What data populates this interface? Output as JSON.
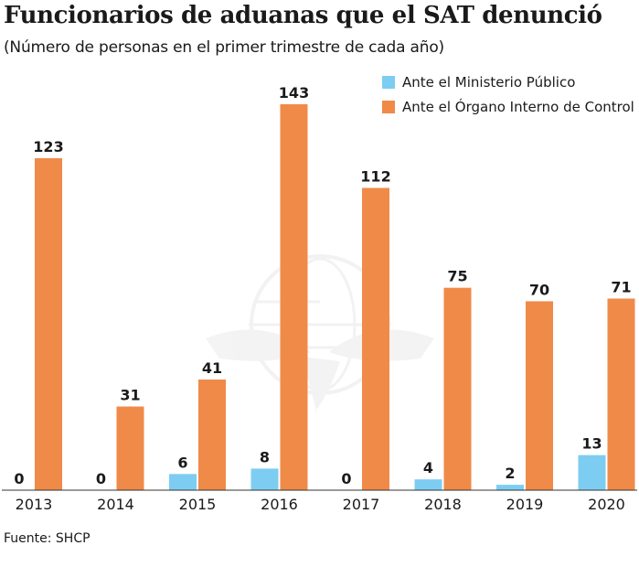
{
  "title": "Funcionarios de aduanas que el SAT denunció",
  "subtitle": "(Número de personas en el primer trimestre de cada año)",
  "source": "Fuente: SHCP",
  "colors": {
    "ministerio": "#7dcdf2",
    "organo": "#f08a48",
    "axis": "#333333",
    "watermark": "#e6e6e6"
  },
  "icons": {
    "watermark": "eagle-seal-watermark"
  },
  "chart_data": {
    "type": "bar",
    "title": "Funcionarios de aduanas que el SAT denunció",
    "subtitle": "(Número de personas en el primer trimestre de cada año)",
    "xlabel": "",
    "ylabel": "",
    "ylim": [
      0,
      143
    ],
    "grid": false,
    "legend_position": "top-right",
    "categories": [
      "2013",
      "2014",
      "2015",
      "2016",
      "2017",
      "2018",
      "2019",
      "2020"
    ],
    "series": [
      {
        "name": "Ante el Ministerio Público",
        "values": [
          0,
          0,
          6,
          8,
          0,
          4,
          2,
          13
        ]
      },
      {
        "name": "Ante el Órgano Interno de Control",
        "values": [
          123,
          31,
          41,
          143,
          112,
          75,
          70,
          71
        ]
      }
    ]
  }
}
